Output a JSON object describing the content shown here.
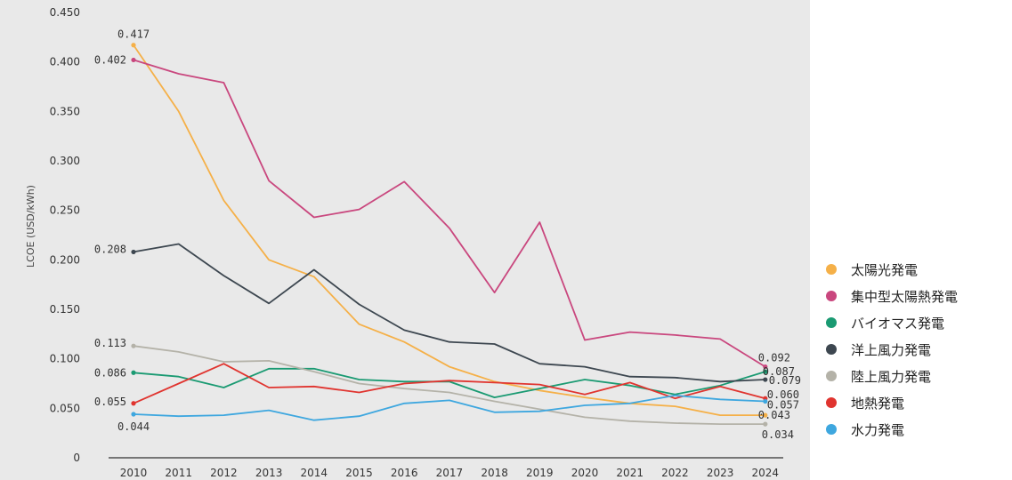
{
  "chart_data": {
    "type": "line",
    "ylabel": "LCOE (USD/kWh)",
    "xlabel": "",
    "ylim": [
      0,
      0.45
    ],
    "y_ticks": [
      "0",
      "0.050",
      "0.100",
      "0.150",
      "0.200",
      "0.250",
      "0.300",
      "0.350",
      "0.400",
      "0.450"
    ],
    "y_tick_values": [
      0,
      0.05,
      0.1,
      0.15,
      0.2,
      0.25,
      0.3,
      0.35,
      0.4,
      0.45
    ],
    "categories": [
      "2010",
      "2011",
      "2012",
      "2013",
      "2014",
      "2015",
      "2016",
      "2017",
      "2018",
      "2019",
      "2020",
      "2021",
      "2022",
      "2023",
      "2024"
    ],
    "legend_position": "right",
    "grid": false,
    "series": [
      {
        "name": "太陽光発電",
        "color": "#f5b048",
        "values": [
          0.417,
          0.35,
          0.26,
          0.2,
          0.183,
          0.135,
          0.117,
          0.092,
          0.077,
          0.068,
          0.061,
          0.055,
          0.052,
          0.043,
          0.043
        ],
        "start_label": "0.417",
        "end_label": "0.043"
      },
      {
        "name": "集中型太陽熱発電",
        "color": "#c9477e",
        "values": [
          0.402,
          0.388,
          0.379,
          0.28,
          0.243,
          0.251,
          0.279,
          0.232,
          0.167,
          0.238,
          0.119,
          0.127,
          0.124,
          0.12,
          0.092
        ],
        "start_label": "0.402",
        "end_label": "0.092"
      },
      {
        "name": "バイオマス発電",
        "color": "#1a9a72",
        "values": [
          0.086,
          0.082,
          0.071,
          0.09,
          0.09,
          0.079,
          0.077,
          0.077,
          0.061,
          0.07,
          0.079,
          0.073,
          0.064,
          0.073,
          0.087
        ],
        "start_label": "0.086",
        "end_label": "0.087"
      },
      {
        "name": "洋上風力発電",
        "color": "#3d4750",
        "values": [
          0.208,
          0.216,
          0.184,
          0.156,
          0.19,
          0.155,
          0.129,
          0.117,
          0.115,
          0.095,
          0.092,
          0.082,
          0.081,
          0.077,
          0.079
        ],
        "start_label": "0.208",
        "end_label": "0.079"
      },
      {
        "name": "陸上風力発電",
        "color": "#b4b2a8",
        "values": [
          0.113,
          0.107,
          0.097,
          0.098,
          0.087,
          0.075,
          0.07,
          0.066,
          0.057,
          0.049,
          0.041,
          0.037,
          0.035,
          0.034,
          0.034
        ],
        "start_label": "0.113",
        "end_label": "0.034"
      },
      {
        "name": "地熱発電",
        "color": "#e0342f",
        "values": [
          0.055,
          0.075,
          0.095,
          0.071,
          0.072,
          0.066,
          0.075,
          0.078,
          0.076,
          0.074,
          0.064,
          0.076,
          0.06,
          0.072,
          0.06
        ],
        "start_label": "0.055",
        "end_label": "0.060"
      },
      {
        "name": "水力発電",
        "color": "#3ea7df",
        "values": [
          0.044,
          0.042,
          0.043,
          0.048,
          0.038,
          0.042,
          0.055,
          0.058,
          0.046,
          0.047,
          0.053,
          0.055,
          0.063,
          0.059,
          0.057
        ],
        "start_label": "0.044",
        "end_label": "0.057"
      }
    ]
  }
}
